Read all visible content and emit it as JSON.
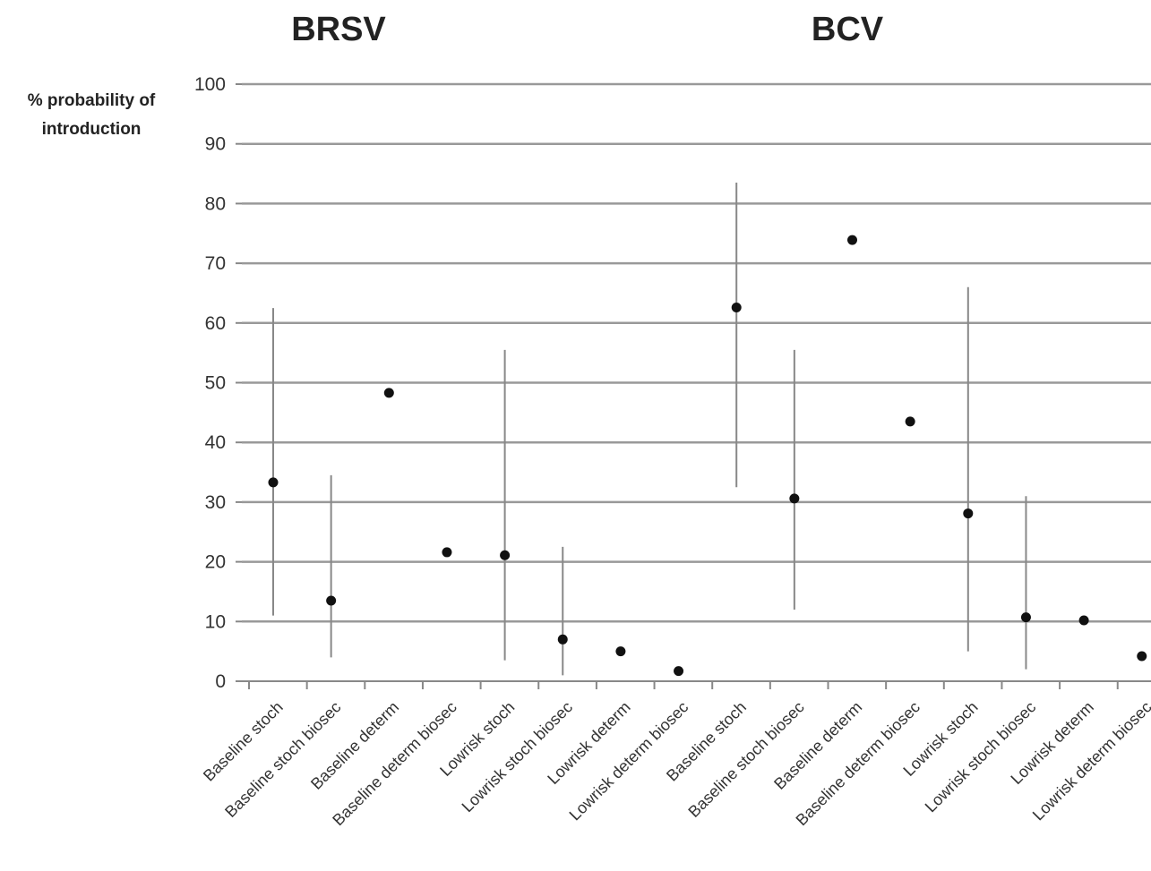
{
  "chart_data": {
    "type": "scatter",
    "group_titles": [
      "BRSV",
      "BCV"
    ],
    "ylabel_lines": [
      "% probability of",
      "introduction"
    ],
    "ylim": [
      0,
      100
    ],
    "yticks": [
      0,
      10,
      20,
      30,
      40,
      50,
      60,
      70,
      80,
      90,
      100
    ],
    "grid": true,
    "categories": [
      "Baseline stoch",
      "Baseline stoch biosec",
      "Baseline determ",
      "Baseline determ biosec",
      "Lowrisk stoch",
      "Lowrisk stoch biosec",
      "Lowrisk determ",
      "Lowrisk determ biosec",
      "Baseline stoch",
      "Baseline stoch biosec",
      "Baseline determ",
      "Baseline determ biosec",
      "Lowrisk stoch",
      "Lowrisk stoch biosec",
      "Lowrisk determ",
      "Lowrisk determ biosec"
    ],
    "values": [
      33.3,
      13.5,
      48.3,
      21.6,
      21.1,
      7.0,
      5.0,
      1.7,
      62.6,
      30.6,
      73.9,
      43.5,
      28.1,
      10.7,
      10.2,
      4.2
    ],
    "error_low": [
      11,
      4,
      null,
      null,
      3.5,
      1,
      null,
      null,
      32.5,
      12,
      null,
      null,
      5,
      2,
      null,
      null
    ],
    "error_high": [
      62.5,
      34.5,
      null,
      null,
      55.5,
      22.5,
      null,
      null,
      83.5,
      55.5,
      null,
      null,
      66,
      31,
      null,
      null
    ]
  }
}
